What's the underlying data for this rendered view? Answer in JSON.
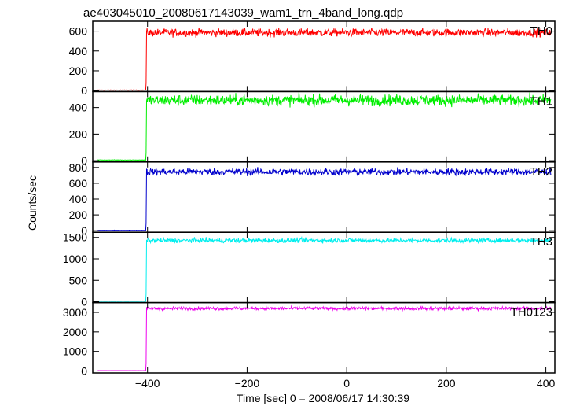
{
  "chart_data": {
    "type": "line",
    "title": "ae403045010_20080617143039_wam1_trn_4band_long.qdp",
    "xlabel": "Time [sec] 0 = 2008/06/17 14:30:39",
    "ylabel": "Counts/sec",
    "xlim": [
      -510,
      418
    ],
    "x_ticks": [
      -400,
      -200,
      0,
      200,
      400
    ],
    "x_tick_labels": [
      "−400",
      "−200",
      "0",
      "200",
      "400"
    ],
    "grid": false,
    "burst_onset_time": -402,
    "x_start": -500,
    "x_end": 410,
    "panels": [
      {
        "name": "TH0",
        "color": "#ff0000",
        "ylim": [
          -10,
          700
        ],
        "y_ticks": [
          0,
          200,
          400,
          600
        ],
        "pre_level": 5,
        "post_level": 585,
        "noise_amplitude": 28
      },
      {
        "name": "TH1",
        "color": "#00ee00",
        "ylim": [
          -10,
          520
        ],
        "y_ticks": [
          0,
          200,
          400
        ],
        "pre_level": 5,
        "post_level": 455,
        "noise_amplitude": 30
      },
      {
        "name": "TH2",
        "color": "#0000cc",
        "ylim": [
          -20,
          870
        ],
        "y_ticks": [
          0,
          200,
          400,
          600,
          800
        ],
        "pre_level": 5,
        "post_level": 745,
        "noise_amplitude": 32
      },
      {
        "name": "TH3",
        "color": "#00eeee",
        "ylim": [
          -20,
          1620
        ],
        "y_ticks": [
          0,
          500,
          1000,
          1500
        ],
        "pre_level": 10,
        "post_level": 1430,
        "noise_amplitude": 38
      },
      {
        "name": "TH0123",
        "color": "#ee00ee",
        "ylim": [
          -100,
          3500
        ],
        "y_ticks": [
          0,
          1000,
          2000,
          3000
        ],
        "pre_level": 20,
        "post_level": 3200,
        "noise_amplitude": 60
      }
    ]
  }
}
